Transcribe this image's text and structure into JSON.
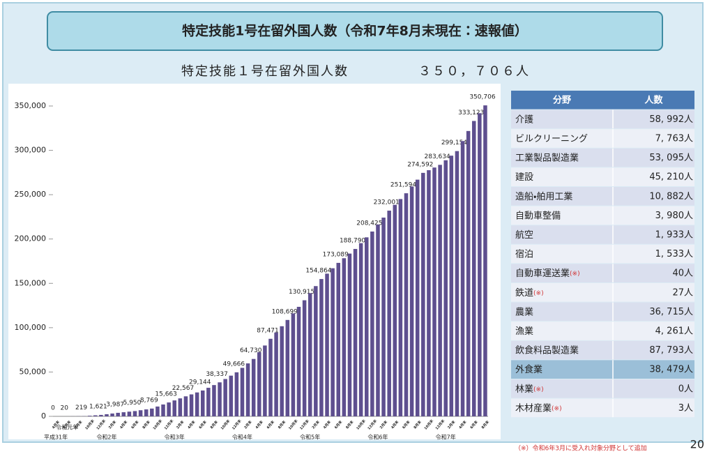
{
  "banner": {
    "title": "特定技能1号在留外国人数（令和7年8月末現在：速報値）"
  },
  "summary": {
    "label": "特定技能１号在留外国人数",
    "total": "３５０，７０６人"
  },
  "chart_data": {
    "type": "bar",
    "color": "#5e4f8f",
    "ylim": [
      0,
      360000
    ],
    "yticks": [
      0,
      {
        "value": 50000,
        "label": "50,000"
      },
      {
        "value": 100000,
        "label": "100,000"
      },
      {
        "value": 150000,
        "label": "150,000"
      },
      {
        "value": 200000,
        "label": "200,000"
      },
      {
        "value": 250000,
        "label": "250,000"
      },
      {
        "value": 300000,
        "label": "300,000"
      },
      {
        "value": 350000,
        "label": "350,000"
      }
    ],
    "categories": [
      "4月末",
      null,
      "6月末",
      null,
      "8月末",
      null,
      "10月末",
      null,
      "12月末",
      null,
      "2月末",
      null,
      "4月末",
      null,
      "6月末",
      null,
      "8月末",
      null,
      "10月末",
      null,
      "12月末",
      null,
      "2月末",
      null,
      "4月末",
      null,
      "6月末",
      null,
      "8月末",
      null,
      "10月末",
      null,
      "12月末",
      null,
      "2月末",
      null,
      "4月末",
      null,
      "6月末",
      null,
      "8月末",
      null,
      "10月末",
      null,
      "12月末",
      null,
      "2月末",
      null,
      "4月末",
      null,
      "6月末",
      null,
      "8月末",
      null,
      "10月末",
      null,
      "12月末",
      null,
      "2月末",
      null,
      "4月末",
      null,
      "6月末",
      null,
      "8月末",
      null,
      "10月末",
      null,
      "12月末",
      null,
      "2月末",
      null,
      "4月末",
      null,
      "6月末",
      null,
      "8月末"
    ],
    "values": [
      0,
      10,
      20,
      86,
      153,
      219,
      686,
      1154,
      1621,
      2410,
      3198,
      3987,
      4641,
      5296,
      5950,
      6890,
      7829,
      8769,
      11067,
      13365,
      15663,
      17964,
      20266,
      22567,
      24759,
      26952,
      29144,
      32208,
      35273,
      38337,
      42113,
      45890,
      49666,
      54687,
      59709,
      64730,
      72310,
      79891,
      87471,
      94547,
      101623,
      108699,
      116104,
      123510,
      130915,
      138898,
      146881,
      154864,
      160939,
      167014,
      173089,
      178323,
      183556,
      188790,
      195335,
      201880,
      208425,
      216284,
      224142,
      232001,
      238532,
      245063,
      251594,
      259260,
      266926,
      274592,
      277606,
      280620,
      283634,
      288807,
      293981,
      299154,
      310477,
      321800,
      333123,
      341915,
      350706
    ],
    "value_labels": [
      "0",
      null,
      "20",
      null,
      null,
      "219",
      null,
      null,
      "1,621",
      null,
      null,
      "3,987",
      null,
      null,
      "5,950",
      null,
      null,
      "8,769",
      null,
      null,
      "15,663",
      null,
      null,
      "22,567",
      null,
      null,
      "29,144",
      null,
      null,
      "38,337",
      null,
      null,
      "49,666",
      null,
      null,
      "64,730",
      null,
      null,
      "87,471",
      null,
      null,
      "108,699",
      null,
      null,
      "130,915",
      null,
      null,
      "154,864",
      null,
      null,
      "173,089",
      null,
      null,
      "188,790",
      null,
      null,
      "208,425",
      null,
      null,
      "232,001",
      null,
      null,
      "251,594",
      null,
      null,
      "274,592",
      null,
      null,
      "283,634",
      null,
      null,
      "299,154",
      null,
      null,
      "333,123",
      null,
      "350,706"
    ],
    "year_labels": [
      {
        "label": "平成31年",
        "index": 0
      },
      {
        "label": "令和元年",
        "index": 2
      },
      {
        "label": "令和2年",
        "index": 9
      },
      {
        "label": "令和3年",
        "index": 21
      },
      {
        "label": "令和4年",
        "index": 33
      },
      {
        "label": "令和5年",
        "index": 45
      },
      {
        "label": "令和6年",
        "index": 57
      },
      {
        "label": "令和7年",
        "index": 69
      }
    ]
  },
  "table": {
    "header": [
      "分野",
      "人数"
    ],
    "rows": [
      {
        "name": "介護",
        "count": "58, 992人"
      },
      {
        "name": "ビルクリーニング",
        "count": "7, 763人"
      },
      {
        "name": "工業製品製造業",
        "count": "53, 095人"
      },
      {
        "name": "建設",
        "count": "45, 210人"
      },
      {
        "name": "造船・舶用工業",
        "count": "10, 882人"
      },
      {
        "name": "自動車整備",
        "count": "3, 980人"
      },
      {
        "name": "航空",
        "count": "1, 933人"
      },
      {
        "name": "宿泊",
        "count": "1, 533人"
      },
      {
        "name": "自動車運送業",
        "note": "(※)",
        "count": "40人"
      },
      {
        "name": "鉄道",
        "note": "(※)",
        "count": "27人"
      },
      {
        "name": "農業",
        "count": "36, 715人"
      },
      {
        "name": "漁業",
        "count": "4, 261人"
      },
      {
        "name": "飲食料品製造業",
        "count": "87, 793人"
      },
      {
        "name": "外食業",
        "count": "38, 479人",
        "highlight": true
      },
      {
        "name": "林業",
        "note": "(※)",
        "count": "0人"
      },
      {
        "name": "木材産業",
        "note": "(※)",
        "count": "3人"
      }
    ]
  },
  "footnote": "（※）令和6年3月に受入れ対象分野として追加",
  "page_number": "20"
}
